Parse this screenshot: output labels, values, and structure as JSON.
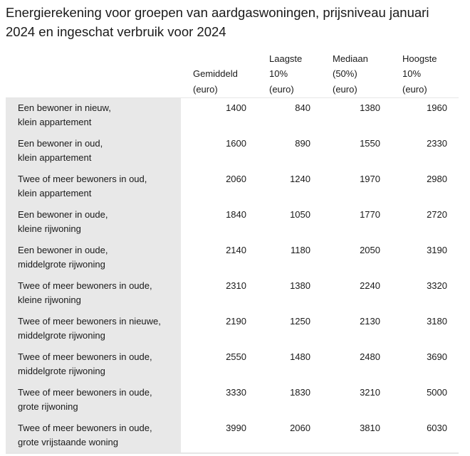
{
  "title": "Energierekening voor groepen van aardgaswoningen, prijsniveau januari 2024 en ingeschat verbruik voor 2024",
  "columns": [
    {
      "lines": [
        "Gemiddeld",
        "(euro)"
      ]
    },
    {
      "lines": [
        "Laagste",
        "10%",
        "(euro)"
      ]
    },
    {
      "lines": [
        "Mediaan",
        "(50%)",
        "(euro)"
      ]
    },
    {
      "lines": [
        "Hoogste",
        "10%",
        "(euro)"
      ]
    }
  ],
  "rows": [
    {
      "label": [
        "Een bewoner in nieuw,",
        "klein appartement"
      ],
      "values": [
        "1400",
        "840",
        "1380",
        "1960"
      ]
    },
    {
      "label": [
        "Een bewoner in oud,",
        "klein appartement"
      ],
      "values": [
        "1600",
        "890",
        "1550",
        "2330"
      ]
    },
    {
      "label": [
        "Twee of meer bewoners in oud,",
        "klein appartement"
      ],
      "values": [
        "2060",
        "1240",
        "1970",
        "2980"
      ]
    },
    {
      "label": [
        "Een bewoner in oude,",
        "kleine rijwoning"
      ],
      "values": [
        "1840",
        "1050",
        "1770",
        "2720"
      ]
    },
    {
      "label": [
        "Een bewoner in oude,",
        "middelgrote rijwoning"
      ],
      "values": [
        "2140",
        "1180",
        "2050",
        "3190"
      ]
    },
    {
      "label": [
        "Twee of meer bewoners in oude,",
        "kleine rijwoning"
      ],
      "values": [
        "2310",
        "1380",
        "2240",
        "3320"
      ]
    },
    {
      "label": [
        "Twee of meer bewoners in nieuwe,",
        "middelgrote rijwoning"
      ],
      "values": [
        "2190",
        "1250",
        "2130",
        "3180"
      ]
    },
    {
      "label": [
        "Twee of meer bewoners in oude,",
        "middelgrote rijwoning"
      ],
      "values": [
        "2550",
        "1480",
        "2480",
        "3690"
      ]
    },
    {
      "label": [
        "Twee of meer bewoners in oude,",
        "grote rijwoning"
      ],
      "values": [
        "3330",
        "1830",
        "3210",
        "5000"
      ]
    },
    {
      "label": [
        "Twee of meer bewoners in oude,",
        "grote vrijstaande woning"
      ],
      "values": [
        "3990",
        "2060",
        "3810",
        "6030"
      ]
    }
  ]
}
